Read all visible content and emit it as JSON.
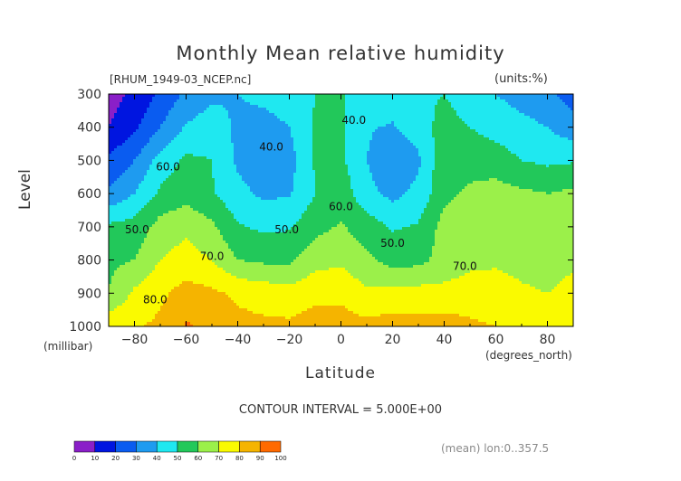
{
  "figure": {
    "title": "Monthly Mean relative humidity",
    "subtitle": "[RHUM_1949-03_NCEP.nc]",
    "units": "(units:%)",
    "contour_interval": "CONTOUR INTERVAL = 5.000E+00",
    "footnote": "(mean) lon:0..357.5",
    "x_unit": "(degrees_north)",
    "y_unit": "(millibar)"
  },
  "chart_data": {
    "type": "heatmap",
    "title": "Monthly Mean relative humidity",
    "xlabel": "Latitude",
    "ylabel": "Level",
    "xlim": [
      -90,
      90
    ],
    "ylim": [
      1000,
      300
    ],
    "x_ticks": [
      -80,
      -60,
      -40,
      -20,
      0,
      20,
      40,
      60,
      80
    ],
    "y_ticks": [
      300,
      400,
      500,
      600,
      700,
      800,
      900,
      1000
    ],
    "x": [
      -90,
      -80,
      -70,
      -60,
      -50,
      -40,
      -30,
      -20,
      -10,
      0,
      10,
      20,
      30,
      40,
      50,
      60,
      70,
      80,
      90
    ],
    "y": [
      1000,
      900,
      800,
      700,
      600,
      500,
      400,
      300
    ],
    "z": [
      [
        78,
        79,
        82,
        91,
        88,
        83,
        82,
        82,
        84,
        84,
        83,
        84,
        84,
        85,
        82,
        80,
        78,
        76,
        75
      ],
      [
        60,
        72,
        78,
        84,
        82,
        78,
        76,
        74,
        78,
        78,
        72,
        74,
        74,
        73,
        74,
        73,
        71,
        70,
        72
      ],
      [
        58,
        60,
        70,
        74,
        70,
        60,
        58,
        58,
        66,
        68,
        62,
        56,
        57,
        64,
        68,
        69,
        68,
        67,
        69
      ],
      [
        52,
        54,
        64,
        68,
        62,
        51,
        48,
        49,
        57,
        61,
        55,
        49,
        51,
        64,
        68,
        68,
        67,
        66,
        68
      ],
      [
        32,
        40,
        52,
        56,
        51,
        43,
        38,
        39,
        50,
        56,
        43,
        37,
        43,
        57,
        62,
        64,
        62,
        60,
        62
      ],
      [
        22,
        30,
        44,
        52,
        50,
        38,
        35,
        36,
        51,
        52,
        40,
        32,
        38,
        58,
        56,
        55,
        50,
        48,
        49
      ],
      [
        10,
        18,
        30,
        41,
        45,
        38,
        37,
        40,
        51,
        52,
        41,
        39,
        45,
        54,
        50,
        46,
        43,
        40,
        34
      ],
      [
        6,
        12,
        22,
        32,
        38,
        40,
        42,
        44,
        50,
        51,
        46,
        46,
        48,
        50,
        44,
        40,
        36,
        33,
        25
      ]
    ],
    "contour_interval": 5,
    "contour_labels": [
      {
        "text": "40.0",
        "lat": -27,
        "lev": 470
      },
      {
        "text": "40.0",
        "lat": 5,
        "lev": 390
      },
      {
        "text": "50.0",
        "lat": -21,
        "lev": 720
      },
      {
        "text": "60.0",
        "lat": 0,
        "lev": 650
      },
      {
        "text": "50.0",
        "lat": 20,
        "lev": 760
      },
      {
        "text": "60.0",
        "lat": -67,
        "lev": 530
      },
      {
        "text": "50.0",
        "lat": -79,
        "lev": 720
      },
      {
        "text": "70.0",
        "lat": -50,
        "lev": 800
      },
      {
        "text": "80.0",
        "lat": -72,
        "lev": 930
      },
      {
        "text": "70.0",
        "lat": 48,
        "lev": 830
      }
    ],
    "colorbar": {
      "ticks": [
        "0",
        "10",
        "20",
        "30",
        "40",
        "50",
        "60",
        "70",
        "80",
        "90",
        "100"
      ],
      "colors": [
        "#8a1fc8",
        "#0015e0",
        "#0a5cf0",
        "#1e9bf0",
        "#1fe8f0",
        "#22c85a",
        "#9bf04a",
        "#fafa00",
        "#f5b400",
        "#ff6a00",
        "#ff1010"
      ]
    }
  }
}
